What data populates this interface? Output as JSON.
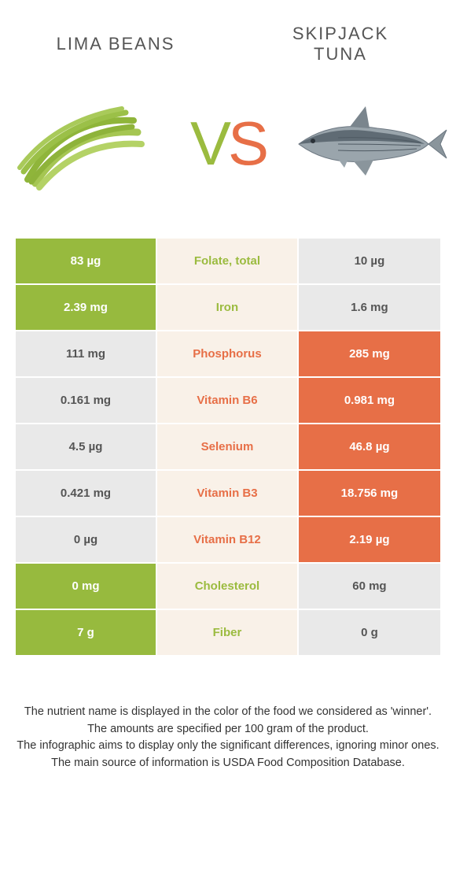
{
  "colors": {
    "green": "#9bbb3f",
    "green_row": "#97ba3e",
    "orange": "#e76f47",
    "mid_bg": "#f9f1e8",
    "gray_bg": "#e9e9e9",
    "white": "#ffffff"
  },
  "header": {
    "left": "LIMA BEANS",
    "right": "SKIPJACK\nTUNA",
    "vs_v": "V",
    "vs_s": "S"
  },
  "rows": [
    {
      "left": "83 µg",
      "label": "Folate, total",
      "right": "10 µg",
      "winner": "left"
    },
    {
      "left": "2.39 mg",
      "label": "Iron",
      "right": "1.6 mg",
      "winner": "left"
    },
    {
      "left": "111 mg",
      "label": "Phosphorus",
      "right": "285 mg",
      "winner": "right"
    },
    {
      "left": "0.161 mg",
      "label": "Vitamin B6",
      "right": "0.981 mg",
      "winner": "right"
    },
    {
      "left": "4.5 µg",
      "label": "Selenium",
      "right": "46.8 µg",
      "winner": "right"
    },
    {
      "left": "0.421 mg",
      "label": "Vitamin B3",
      "right": "18.756 mg",
      "winner": "right"
    },
    {
      "left": "0 µg",
      "label": "Vitamin B12",
      "right": "2.19 µg",
      "winner": "right"
    },
    {
      "left": "0 mg",
      "label": "Cholesterol",
      "right": "60 mg",
      "winner": "left"
    },
    {
      "left": "7 g",
      "label": "Fiber",
      "right": "0 g",
      "winner": "left"
    }
  ],
  "footer": {
    "line1": "The nutrient name is displayed in the color of the food we considered as 'winner'.",
    "line2": "The amounts are specified per 100 gram of the product.",
    "line3": "The infographic aims to display only the significant differences, ignoring minor ones.",
    "line4": "The main source of information is USDA Food Composition Database."
  }
}
